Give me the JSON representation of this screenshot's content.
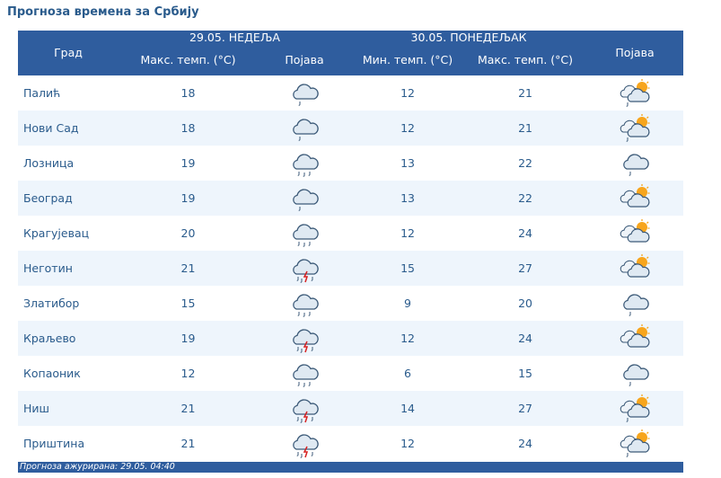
{
  "page_title": "Прогноза времена за Србију",
  "header": {
    "col_city": "Град",
    "day1_date": "29.05. НЕДЕЉА",
    "day1_max": "Макс. темп. (°C)",
    "day1_phen": "Појава",
    "day2_date": "30.05. ПОНЕДЕЉАК",
    "day2_min": "Мин. темп. (°C)",
    "day2_max": "Макс. темп. (°C)",
    "day2_phen": "Појава"
  },
  "colors": {
    "header_bg": "#2f5d9e",
    "text": "#2a5b8c",
    "row_alt": "#eef5fc"
  },
  "rows": [
    {
      "city": "Палић",
      "d1_max": "18",
      "d1_icon": "cloud-light-rain-icon",
      "d2_min": "12",
      "d2_max": "21",
      "d2_icon": "partly-cloudy-rain-icon"
    },
    {
      "city": "Нови Сад",
      "d1_max": "18",
      "d1_icon": "cloud-light-rain-icon",
      "d2_min": "12",
      "d2_max": "21",
      "d2_icon": "partly-cloudy-rain-icon"
    },
    {
      "city": "Лозница",
      "d1_max": "19",
      "d1_icon": "cloud-rain-icon",
      "d2_min": "13",
      "d2_max": "22",
      "d2_icon": "cloud-light-rain-icon"
    },
    {
      "city": "Београд",
      "d1_max": "19",
      "d1_icon": "cloud-light-rain-icon",
      "d2_min": "13",
      "d2_max": "22",
      "d2_icon": "partly-cloudy-icon"
    },
    {
      "city": "Крагујевац",
      "d1_max": "20",
      "d1_icon": "cloud-rain-icon",
      "d2_min": "12",
      "d2_max": "24",
      "d2_icon": "partly-cloudy-icon"
    },
    {
      "city": "Неготин",
      "d1_max": "21",
      "d1_icon": "thunderstorm-icon",
      "d2_min": "15",
      "d2_max": "27",
      "d2_icon": "partly-cloudy-icon"
    },
    {
      "city": "Златибор",
      "d1_max": "15",
      "d1_icon": "cloud-rain-icon",
      "d2_min": "9",
      "d2_max": "20",
      "d2_icon": "cloud-light-rain-icon"
    },
    {
      "city": "Краљево",
      "d1_max": "19",
      "d1_icon": "thunderstorm-icon",
      "d2_min": "12",
      "d2_max": "24",
      "d2_icon": "partly-cloudy-icon"
    },
    {
      "city": "Копаоник",
      "d1_max": "12",
      "d1_icon": "cloud-rain-icon",
      "d2_min": "6",
      "d2_max": "15",
      "d2_icon": "cloud-light-rain-icon"
    },
    {
      "city": "Ниш",
      "d1_max": "21",
      "d1_icon": "thunderstorm-icon",
      "d2_min": "14",
      "d2_max": "27",
      "d2_icon": "partly-cloudy-rain-icon"
    },
    {
      "city": "Приштина",
      "d1_max": "21",
      "d1_icon": "thunderstorm-icon",
      "d2_min": "12",
      "d2_max": "24",
      "d2_icon": "partly-cloudy-rain-icon"
    }
  ],
  "footer": {
    "updated": "Прогноза ажурирана:  29.05. 04:40"
  }
}
